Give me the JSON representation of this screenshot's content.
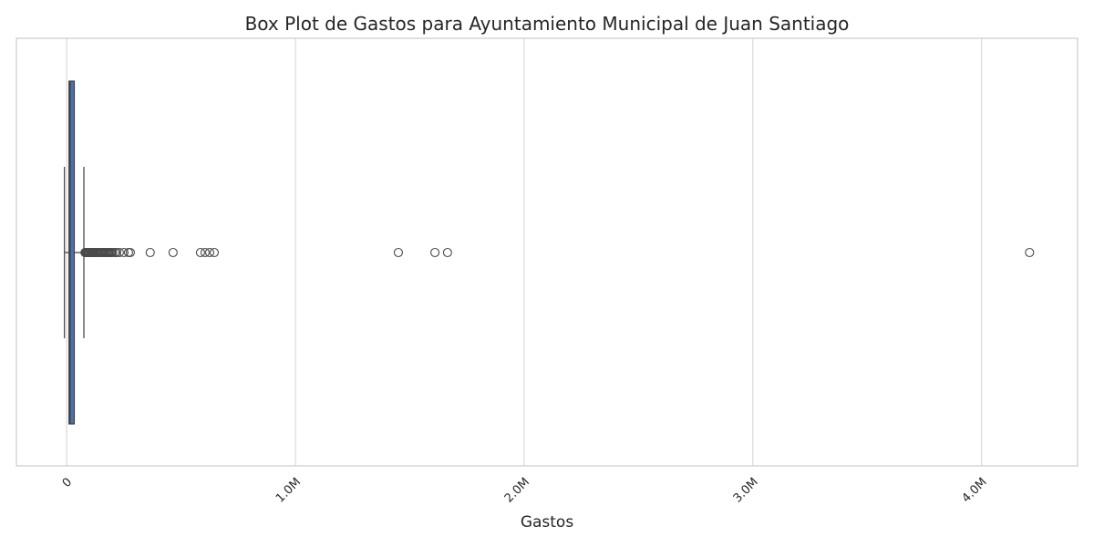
{
  "chart_data": {
    "type": "box",
    "title": "Box Plot de Gastos para Ayuntamiento Municipal de Juan Santiago",
    "xlabel": "Gastos",
    "ylabel": "",
    "orientation": "horizontal",
    "xlim": [
      -220000,
      4420000
    ],
    "xticks": [
      {
        "value": 0,
        "label": "0"
      },
      {
        "value": 1000000,
        "label": "1.0M"
      },
      {
        "value": 2000000,
        "label": "2.0M"
      },
      {
        "value": 3000000,
        "label": "3.0M"
      },
      {
        "value": 4000000,
        "label": "4.0M"
      }
    ],
    "grid": "vertical",
    "box": {
      "whisker_low": -10000,
      "q1": 10000,
      "median": 15000,
      "q3": 33000,
      "whisker_high": 75000,
      "color": "#4c72b0",
      "edge_color": "#3d3d3d"
    },
    "outliers": [
      80000,
      84000,
      88000,
      92000,
      96000,
      100000,
      104000,
      108000,
      112000,
      116000,
      120000,
      125000,
      130000,
      135000,
      140000,
      145000,
      150000,
      155000,
      160000,
      165000,
      170000,
      175000,
      180000,
      185000,
      190000,
      195000,
      200000,
      210000,
      218000,
      230000,
      250000,
      270000,
      278000,
      365000,
      465000,
      585000,
      605000,
      625000,
      645000,
      1450000,
      1610000,
      1665000,
      4210000
    ],
    "colors": {
      "grid": "#d9d9d9",
      "frame": "#cccccc",
      "text": "#262626",
      "outlier_edge": "#4a4a4a"
    }
  }
}
